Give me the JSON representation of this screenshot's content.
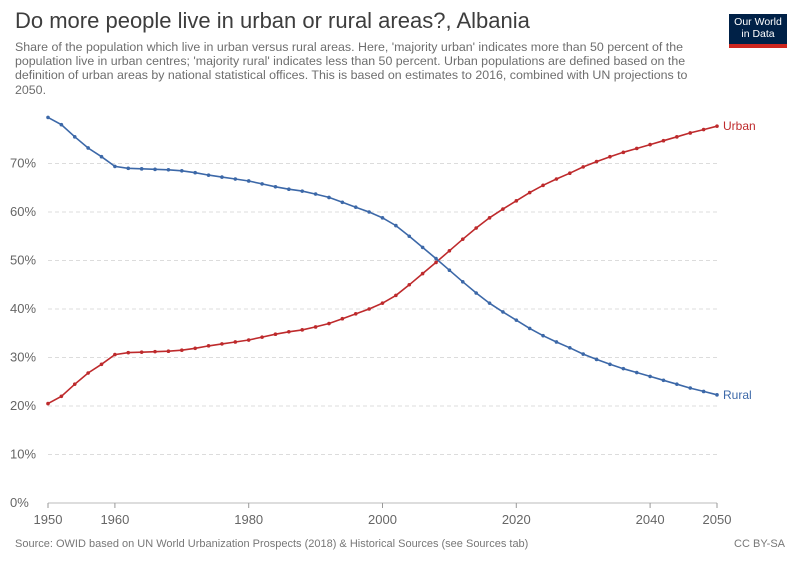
{
  "header": {
    "title": "Do more people live in urban or rural areas?, Albania",
    "subtitle": "Share of the population which live in urban versus rural areas. Here, 'majority urban' indicates more than 50 percent of the population live in urban centres; 'majority rural' indicates less than 50 percent. Urban populations are defined based on the definition of urban areas by national statistical offices. This is based on estimates to 2016, combined with UN projections to 2050."
  },
  "logo": {
    "line1": "Our World",
    "line2": "in Data",
    "bg_color": "#002147",
    "accent_color": "#ce261e"
  },
  "footer": {
    "source": "Source: OWID based on UN World Urbanization Prospects (2018) & Historical Sources (see Sources tab)",
    "license": "CC BY-SA"
  },
  "chart_data": {
    "type": "line",
    "xlim": [
      1950,
      2050
    ],
    "ylim": [
      0,
      80
    ],
    "x_ticks": [
      1950,
      1960,
      1980,
      2000,
      2020,
      2040,
      2050
    ],
    "y_ticks": [
      0,
      10,
      20,
      30,
      40,
      50,
      60,
      70
    ],
    "y_tick_labels": [
      "0%",
      "10%",
      "20%",
      "30%",
      "40%",
      "50%",
      "60%",
      "70%"
    ],
    "grid": "horizontal-dashed",
    "series": [
      {
        "name": "Urban",
        "color": "#be2a2c",
        "points": [
          [
            1950,
            20.5
          ],
          [
            1952,
            22.0
          ],
          [
            1954,
            24.5
          ],
          [
            1956,
            26.8
          ],
          [
            1958,
            28.6
          ],
          [
            1960,
            30.6
          ],
          [
            1962,
            31.0
          ],
          [
            1964,
            31.1
          ],
          [
            1966,
            31.2
          ],
          [
            1968,
            31.3
          ],
          [
            1970,
            31.5
          ],
          [
            1972,
            31.9
          ],
          [
            1974,
            32.4
          ],
          [
            1976,
            32.8
          ],
          [
            1978,
            33.2
          ],
          [
            1980,
            33.6
          ],
          [
            1982,
            34.2
          ],
          [
            1984,
            34.8
          ],
          [
            1986,
            35.3
          ],
          [
            1988,
            35.7
          ],
          [
            1990,
            36.3
          ],
          [
            1992,
            37.0
          ],
          [
            1994,
            38.0
          ],
          [
            1996,
            39.0
          ],
          [
            1998,
            40.0
          ],
          [
            2000,
            41.2
          ],
          [
            2002,
            42.8
          ],
          [
            2004,
            45.0
          ],
          [
            2006,
            47.3
          ],
          [
            2008,
            49.6
          ],
          [
            2010,
            52.0
          ],
          [
            2012,
            54.4
          ],
          [
            2014,
            56.7
          ],
          [
            2016,
            58.8
          ],
          [
            2018,
            60.6
          ],
          [
            2020,
            62.3
          ],
          [
            2022,
            64.0
          ],
          [
            2024,
            65.5
          ],
          [
            2026,
            66.8
          ],
          [
            2028,
            68.0
          ],
          [
            2030,
            69.3
          ],
          [
            2032,
            70.4
          ],
          [
            2034,
            71.4
          ],
          [
            2036,
            72.3
          ],
          [
            2038,
            73.1
          ],
          [
            2040,
            73.9
          ],
          [
            2042,
            74.7
          ],
          [
            2044,
            75.5
          ],
          [
            2046,
            76.3
          ],
          [
            2048,
            77.0
          ],
          [
            2050,
            77.7
          ]
        ]
      },
      {
        "name": "Rural",
        "color": "#3c68a8",
        "points": [
          [
            1950,
            79.5
          ],
          [
            1952,
            78.0
          ],
          [
            1954,
            75.5
          ],
          [
            1956,
            73.2
          ],
          [
            1958,
            71.4
          ],
          [
            1960,
            69.4
          ],
          [
            1962,
            69.0
          ],
          [
            1964,
            68.9
          ],
          [
            1966,
            68.8
          ],
          [
            1968,
            68.7
          ],
          [
            1970,
            68.5
          ],
          [
            1972,
            68.1
          ],
          [
            1974,
            67.6
          ],
          [
            1976,
            67.2
          ],
          [
            1978,
            66.8
          ],
          [
            1980,
            66.4
          ],
          [
            1982,
            65.8
          ],
          [
            1984,
            65.2
          ],
          [
            1986,
            64.7
          ],
          [
            1988,
            64.3
          ],
          [
            1990,
            63.7
          ],
          [
            1992,
            63.0
          ],
          [
            1994,
            62.0
          ],
          [
            1996,
            61.0
          ],
          [
            1998,
            60.0
          ],
          [
            2000,
            58.8
          ],
          [
            2002,
            57.2
          ],
          [
            2004,
            55.0
          ],
          [
            2006,
            52.7
          ],
          [
            2008,
            50.4
          ],
          [
            2010,
            48.0
          ],
          [
            2012,
            45.6
          ],
          [
            2014,
            43.3
          ],
          [
            2016,
            41.2
          ],
          [
            2018,
            39.4
          ],
          [
            2020,
            37.7
          ],
          [
            2022,
            36.0
          ],
          [
            2024,
            34.5
          ],
          [
            2026,
            33.2
          ],
          [
            2028,
            32.0
          ],
          [
            2030,
            30.7
          ],
          [
            2032,
            29.6
          ],
          [
            2034,
            28.6
          ],
          [
            2036,
            27.7
          ],
          [
            2038,
            26.9
          ],
          [
            2040,
            26.1
          ],
          [
            2042,
            25.3
          ],
          [
            2044,
            24.5
          ],
          [
            2046,
            23.7
          ],
          [
            2048,
            23.0
          ],
          [
            2050,
            22.3
          ]
        ]
      }
    ]
  }
}
